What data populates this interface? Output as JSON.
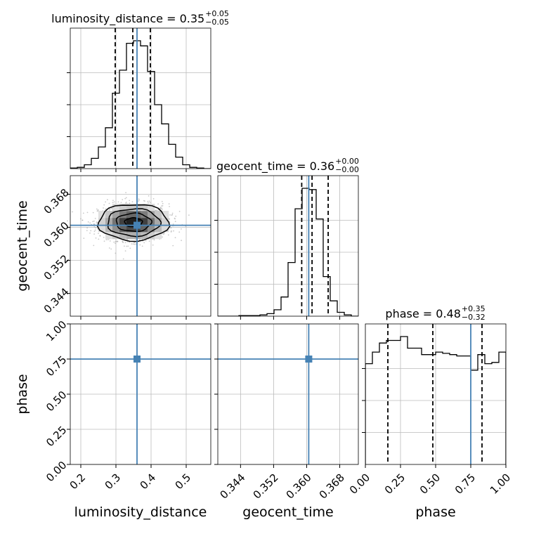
{
  "chart_data": {
    "type": "corner",
    "parameters": [
      "luminosity_distance",
      "geocent_time",
      "phase"
    ],
    "truths": {
      "luminosity_distance": 0.36,
      "geocent_time": 0.3605,
      "phase": 0.75
    },
    "colors": {
      "truth": "#4682b4",
      "hist": "#000000",
      "grid": "#bbbbbb",
      "scatter": "#9e9e9e"
    },
    "grid": true,
    "titles": [
      {
        "label": "luminosity_distance = 0.35",
        "sup": "+0.05",
        "sub": "−0.05"
      },
      {
        "label": "geocent_time = 0.36",
        "sup": "+0.00",
        "sub": "−0.00"
      },
      {
        "label": "phase = 0.48",
        "sup": "+0.35",
        "sub": "−0.32"
      }
    ],
    "axes": {
      "luminosity_distance": {
        "label": "luminosity_distance",
        "range": [
          0.17,
          0.57
        ],
        "ticks": [
          0.2,
          0.3,
          0.4,
          0.5
        ],
        "tick_labels": [
          "0.2",
          "0.3",
          "0.4",
          "0.5"
        ]
      },
      "geocent_time": {
        "label": "geocent_time",
        "range": [
          0.3385,
          0.3725
        ],
        "ticks": [
          0.344,
          0.352,
          0.36,
          0.368
        ],
        "tick_labels": [
          "0.344",
          "0.352",
          "0.360",
          "0.368"
        ]
      },
      "phase": {
        "label": "phase",
        "range": [
          0.0,
          1.0
        ],
        "ticks": [
          0.0,
          0.25,
          0.5,
          0.75,
          1.0
        ],
        "tick_labels": [
          "0.00",
          "0.25",
          "0.50",
          "0.75",
          "1.00"
        ]
      }
    },
    "histograms": {
      "luminosity_distance": {
        "bin_edges": [
          0.17,
          0.19,
          0.21,
          0.23,
          0.25,
          0.27,
          0.29,
          0.31,
          0.33,
          0.35,
          0.37,
          0.39,
          0.41,
          0.43,
          0.45,
          0.47,
          0.49,
          0.51,
          0.53,
          0.55,
          0.57
        ],
        "heights": [
          0.005,
          0.01,
          0.03,
          0.08,
          0.17,
          0.32,
          0.59,
          0.77,
          0.98,
          1.0,
          0.96,
          0.76,
          0.5,
          0.35,
          0.19,
          0.09,
          0.03,
          0.01,
          0.005,
          0.0
        ],
        "quantiles": [
          0.298,
          0.348,
          0.398
        ]
      },
      "geocent_time": {
        "bin_edges": [
          0.3385,
          0.3402,
          0.3419,
          0.3436,
          0.3453,
          0.347,
          0.3487,
          0.3504,
          0.3521,
          0.3538,
          0.3555,
          0.3572,
          0.3589,
          0.3606,
          0.3623,
          0.364,
          0.3657,
          0.3674,
          0.3691,
          0.3708,
          0.3725
        ],
        "heights": [
          0.0,
          0.0,
          0.0,
          0.005,
          0.005,
          0.005,
          0.01,
          0.02,
          0.05,
          0.15,
          0.42,
          0.84,
          1.0,
          0.99,
          0.76,
          0.31,
          0.12,
          0.03,
          0.01,
          0.0
        ],
        "quantiles": [
          0.3588,
          0.3613,
          0.3652
        ]
      },
      "phase": {
        "bin_edges": [
          0.0,
          0.05,
          0.1,
          0.15,
          0.2,
          0.25,
          0.3,
          0.35,
          0.4,
          0.45,
          0.5,
          0.55,
          0.6,
          0.65,
          0.7,
          0.75,
          0.8,
          0.85,
          0.9,
          0.95,
          1.0
        ],
        "heights": [
          0.78,
          0.87,
          0.94,
          0.96,
          0.96,
          0.99,
          0.9,
          0.9,
          0.85,
          0.85,
          0.87,
          0.86,
          0.85,
          0.84,
          0.84,
          0.73,
          0.85,
          0.78,
          0.79,
          0.87
        ],
        "quantiles": [
          0.16,
          0.48,
          0.83
        ]
      }
    }
  }
}
